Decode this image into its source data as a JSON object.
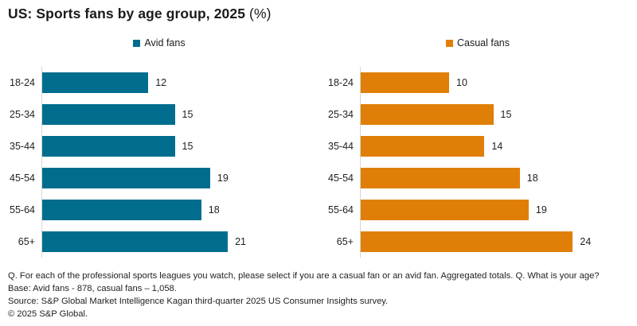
{
  "title": {
    "bold": "US: Sports fans by age group, 2025",
    "regular": " (%)"
  },
  "colors": {
    "avid": "#006d8f",
    "casual": "#e07f08",
    "axis": "#d6d6d6",
    "text": "#1f1f1f"
  },
  "chart_data": {
    "type": "bar",
    "orientation": "horizontal",
    "title": "US: Sports fans by age group, 2025 (%)",
    "categories": [
      "18-24",
      "25-34",
      "35-44",
      "45-54",
      "55-64",
      "65+"
    ],
    "series": [
      {
        "name": "Avid fans",
        "color": "#006d8f",
        "values": [
          12,
          15,
          15,
          19,
          18,
          21
        ]
      },
      {
        "name": "Casual fans",
        "color": "#e07f08",
        "values": [
          10,
          15,
          14,
          18,
          19,
          24
        ]
      }
    ],
    "xlim": [
      0,
      30
    ],
    "data_labels": true,
    "grid": false,
    "legend_position": "top-center",
    "layout": "two side-by-side panels, one per series"
  },
  "footer": {
    "lines": [
      "Q. For each of the professional sports leagues you watch, please select if you are a casual fan or an avid fan. Aggregated totals. Q. What is your age?",
      "Base: Avid fans - 878, casual fans – 1,058.",
      "Source: S&P Global Market Intelligence Kagan third-quarter 2025 US Consumer Insights survey.",
      "© 2025 S&P Global."
    ]
  }
}
